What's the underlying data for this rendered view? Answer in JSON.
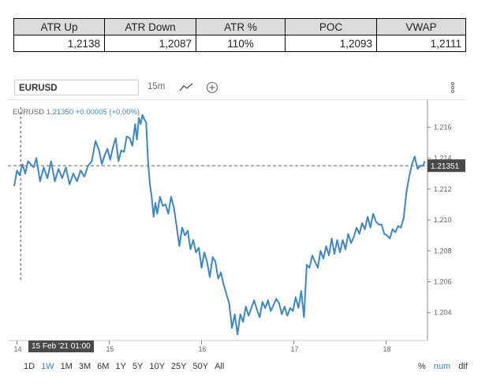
{
  "stats_table": {
    "headers": [
      "ATR Up",
      "ATR Down",
      "ATR %",
      "POC",
      "VWAP"
    ],
    "values": [
      "1,2138",
      "1,2087",
      "110%",
      "1,2093",
      "1,2111"
    ]
  },
  "toolbar": {
    "symbol": "EURUSD",
    "interval": "15m"
  },
  "legend": {
    "symbol": "EURUSD",
    "price": "1.21350",
    "change": "+0.00005 (+0.00%)"
  },
  "crosshair_date": "15 Feb '21 01:00",
  "last_price_label": "1.21351",
  "time_ranges": [
    "1D",
    "1W",
    "1M",
    "3M",
    "6M",
    "1Y",
    "5Y",
    "10Y",
    "25Y",
    "50Y",
    "All"
  ],
  "active_range": "1W",
  "scale_modes": [
    "%",
    "num",
    "dif"
  ],
  "active_mode": "num",
  "colors": {
    "line": "#3b87c9",
    "axis": "#888888",
    "accent": "#3b87c9"
  },
  "chart_data": {
    "type": "line",
    "x_ticks": [
      "14",
      "15",
      "16",
      "17",
      "18"
    ],
    "y_ticks": [
      "1.216",
      "1.214",
      "1.212",
      "1.210",
      "1.208",
      "1.206",
      "1.204"
    ],
    "ylim": [
      1.2022,
      1.2176
    ],
    "last_price": 1.21351,
    "crosshair_price": 1.21351,
    "x_range": [
      13.97,
      18.44
    ],
    "crosshair_x": 14.04,
    "series": [
      {
        "x": [
          13.97,
          14.0,
          14.03,
          14.06,
          14.09,
          14.12,
          14.15,
          14.18,
          14.21,
          14.25,
          14.29,
          14.33,
          14.37,
          14.41,
          14.45,
          14.49,
          14.53,
          14.57,
          14.61,
          14.65,
          14.69,
          14.73,
          14.77,
          14.81,
          14.85,
          14.89,
          14.92,
          14.95,
          14.98,
          15.01,
          15.04,
          15.07,
          15.1,
          15.13,
          15.16,
          15.19,
          15.22,
          15.25,
          15.28,
          15.3,
          15.32,
          15.34,
          15.36,
          15.38,
          15.4,
          15.42,
          15.44,
          15.46,
          15.48,
          15.5,
          15.52,
          15.55,
          15.58,
          15.61,
          15.64,
          15.67,
          15.7,
          15.73,
          15.76,
          15.79,
          15.82,
          15.85,
          15.88,
          15.91,
          15.94,
          15.97,
          16.0,
          16.03,
          16.06,
          16.09,
          16.12,
          16.15,
          16.18,
          16.21,
          16.24,
          16.27,
          16.3,
          16.33,
          16.36,
          16.39,
          16.42,
          16.45,
          16.48,
          16.51,
          16.54,
          16.57,
          16.6,
          16.63,
          16.66,
          16.69,
          16.72,
          16.75,
          16.78,
          16.81,
          16.84,
          16.87,
          16.9,
          16.93,
          16.96,
          16.99,
          17.02,
          17.05,
          17.08,
          17.11,
          17.14,
          17.17,
          17.2,
          17.23,
          17.26,
          17.29,
          17.32,
          17.35,
          17.38,
          17.41,
          17.44,
          17.47,
          17.5,
          17.53,
          17.56,
          17.59,
          17.62,
          17.65,
          17.68,
          17.71,
          17.74,
          17.77,
          17.8,
          17.83,
          17.86,
          17.89,
          17.92,
          17.95,
          17.98,
          18.01,
          18.04,
          18.07,
          18.1,
          18.13,
          18.16,
          18.19,
          18.22,
          18.25,
          18.28,
          18.31,
          18.34,
          18.37,
          18.4,
          18.42
        ],
        "y": [
          1.2122,
          1.2132,
          1.2129,
          1.2136,
          1.213,
          1.2138,
          1.2136,
          1.2134,
          1.214,
          1.2125,
          1.2134,
          1.2127,
          1.2138,
          1.2125,
          1.2133,
          1.2127,
          1.2134,
          1.2123,
          1.213,
          1.2125,
          1.2132,
          1.2128,
          1.2135,
          1.2138,
          1.2151,
          1.2145,
          1.2136,
          1.2142,
          1.2146,
          1.2139,
          1.2147,
          1.2153,
          1.2138,
          1.2145,
          1.2144,
          1.2154,
          1.2153,
          1.2148,
          1.2162,
          1.2152,
          1.2166,
          1.2162,
          1.2168,
          1.2165,
          1.2163,
          1.2138,
          1.2123,
          1.2115,
          1.2102,
          1.2111,
          1.2104,
          1.2115,
          1.2109,
          1.211,
          1.2104,
          1.2115,
          1.2108,
          1.2096,
          1.2083,
          1.2095,
          1.209,
          1.2093,
          1.2081,
          1.2087,
          1.2079,
          1.2082,
          1.2069,
          1.2079,
          1.2073,
          1.2063,
          1.2076,
          1.2073,
          1.2062,
          1.2066,
          1.2058,
          1.2052,
          1.2046,
          1.203,
          1.2039,
          1.2026,
          1.2039,
          1.2034,
          1.2044,
          1.2038,
          1.2043,
          1.2048,
          1.2042,
          1.2037,
          1.2047,
          1.2043,
          1.2048,
          1.2041,
          1.2045,
          1.2049,
          1.2046,
          1.2039,
          1.2044,
          1.2038,
          1.2043,
          1.2041,
          1.205,
          1.2043,
          1.2054,
          1.2037,
          1.2071,
          1.2069,
          1.2077,
          1.2073,
          1.2069,
          1.208,
          1.2075,
          1.2083,
          1.2077,
          1.2088,
          1.2078,
          1.2087,
          1.2079,
          1.2087,
          1.2081,
          1.2091,
          1.2085,
          1.2089,
          1.2095,
          1.2091,
          1.2098,
          1.2094,
          1.2102,
          1.2095,
          1.2104,
          1.2099,
          1.2097,
          1.2097,
          1.2091,
          1.209,
          1.2088,
          1.2094,
          1.2092,
          1.2096,
          1.2095,
          1.2101,
          1.2118,
          1.2128,
          1.2136,
          1.2141,
          1.2133,
          1.2135,
          1.2135,
          1.2138
        ]
      }
    ]
  }
}
